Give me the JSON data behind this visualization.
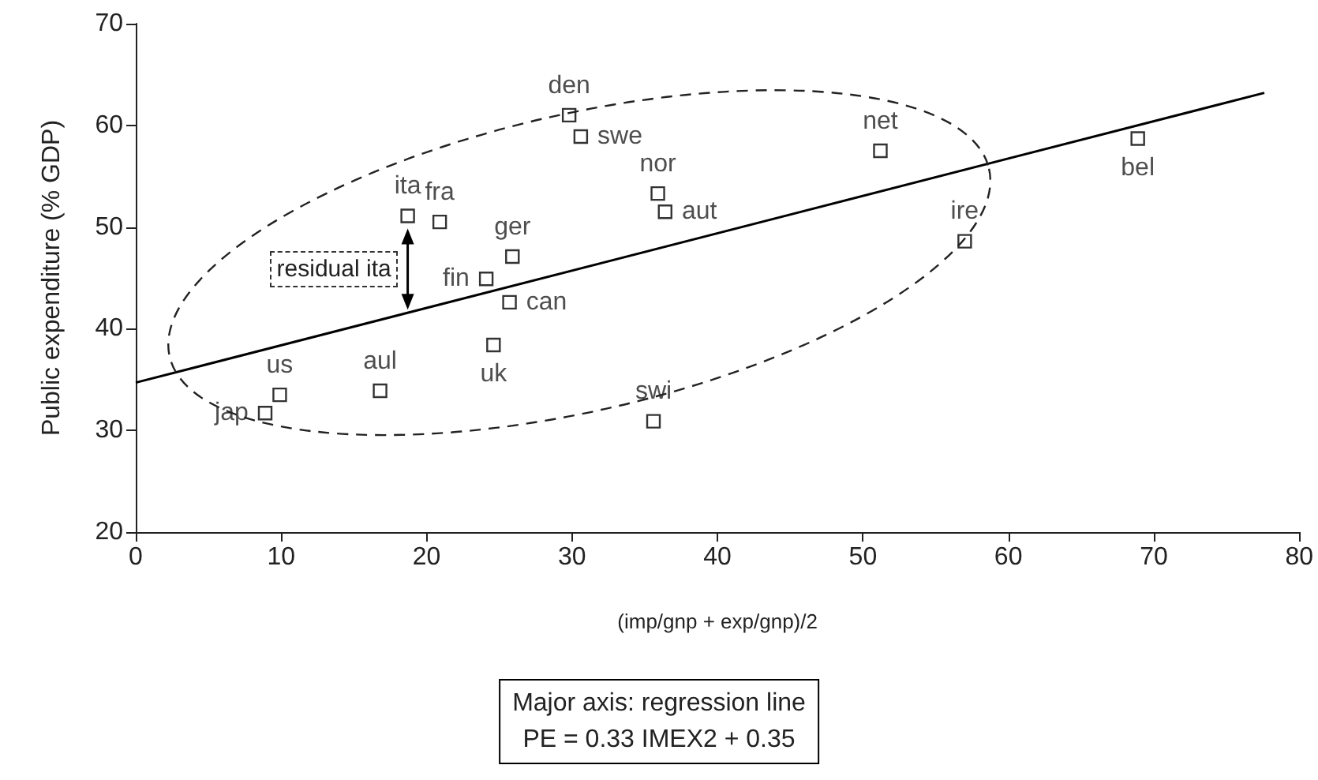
{
  "chart_data": {
    "type": "scatter",
    "xlabel": "(imp/gnp + exp/gnp)/2",
    "ylabel": "Public expenditure (% GDP)",
    "xlim": [
      0,
      80
    ],
    "xticks": [
      0,
      10,
      20,
      30,
      40,
      50,
      60,
      70,
      80
    ],
    "ylim": [
      20,
      70
    ],
    "yticks": [
      20,
      30,
      40,
      50,
      60,
      70
    ],
    "grid": false,
    "marker": "square",
    "series": [
      {
        "color": "#000000",
        "x": [
          8.9,
          9.9,
          16.8,
          18.7,
          20.9,
          25.9,
          24.1,
          25.7,
          24.6,
          29.8,
          30.6,
          35.9,
          36.4,
          35.6,
          51.2,
          57.0,
          68.9
        ],
        "values": [
          31.7,
          33.5,
          33.9,
          51.1,
          50.5,
          47.1,
          44.9,
          42.6,
          38.4,
          61.0,
          58.9,
          53.3,
          51.5,
          30.9,
          57.5,
          48.6,
          58.7
        ],
        "value_labels": [
          "jap",
          "us",
          "aul",
          "ita",
          "fra",
          "ger",
          "fin",
          "can",
          "uk",
          "den",
          "swe",
          "nor",
          "aut",
          "swi",
          "net",
          "ire",
          "bel"
        ]
      },
      {
        "type": "line",
        "color": "#000000",
        "marker": "none",
        "line_style": "solid",
        "x": [
          0,
          77.6
        ],
        "values": [
          34.7,
          63.2
        ]
      }
    ],
    "annotations": [
      "residual ita",
      "Major axis: regression line",
      "PE = 0.33 IMEX2 + 0.35"
    ]
  }
}
